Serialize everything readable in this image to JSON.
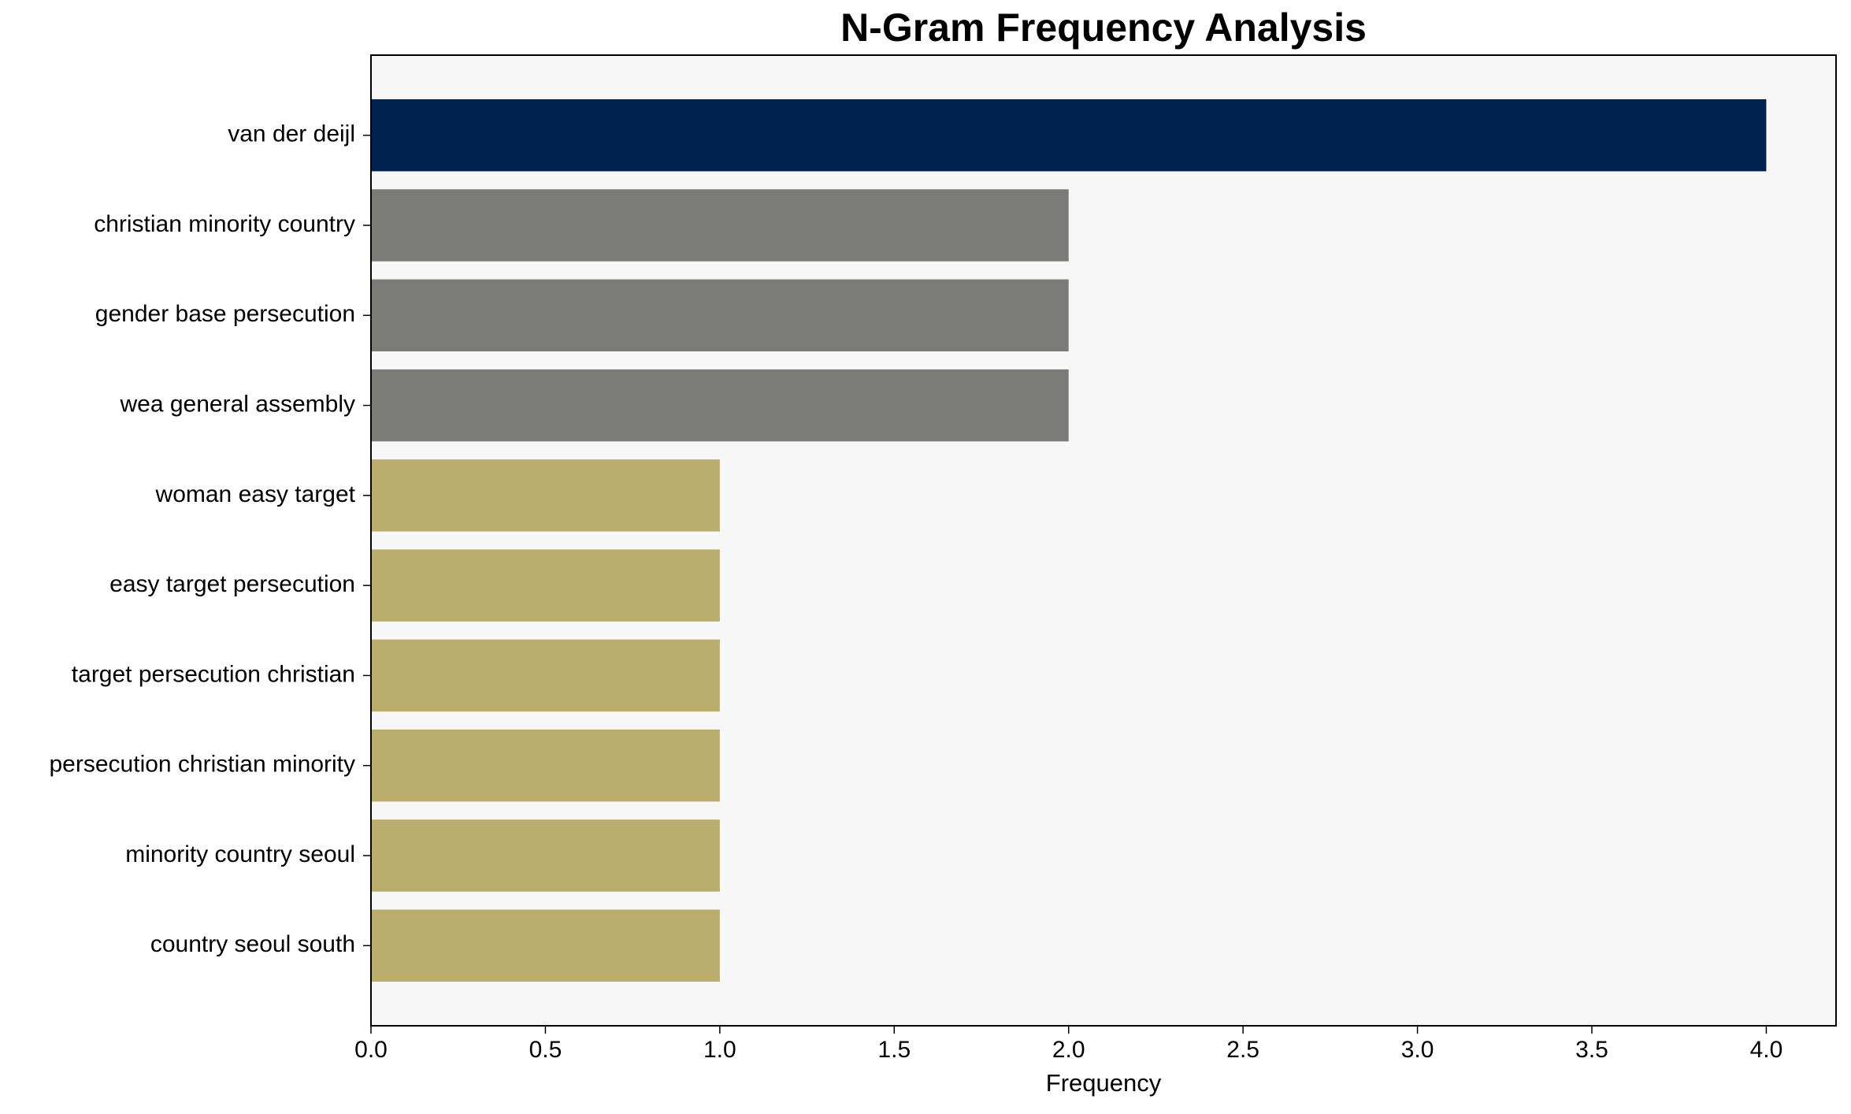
{
  "chart_data": {
    "type": "barh",
    "title": "N-Gram Frequency Analysis",
    "xlabel": "Frequency",
    "categories": [
      "van der deijl",
      "christian minority country",
      "gender base persecution",
      "wea general assembly",
      "woman easy target",
      "easy target persecution",
      "target persecution christian",
      "persecution christian minority",
      "minority country seoul",
      "country seoul south"
    ],
    "values": [
      4,
      2,
      2,
      2,
      1,
      1,
      1,
      1,
      1,
      1
    ],
    "colors": [
      "#00224e",
      "#7b7b77",
      "#7b7b77",
      "#7b7b77",
      "#bbad6e",
      "#bbad6e",
      "#bbad6e",
      "#bbad6e",
      "#bbad6e",
      "#bbad6e"
    ],
    "xlim": [
      0,
      4.2
    ],
    "xticks": [
      {
        "value": 0,
        "label": "0.0"
      },
      {
        "value": 0.5,
        "label": "0.5"
      },
      {
        "value": 1,
        "label": "1.0"
      },
      {
        "value": 1.5,
        "label": "1.5"
      },
      {
        "value": 2,
        "label": "2.0"
      },
      {
        "value": 2.5,
        "label": "2.5"
      },
      {
        "value": 3,
        "label": "3.0"
      },
      {
        "value": 3.5,
        "label": "3.5"
      },
      {
        "value": 4,
        "label": "4.0"
      }
    ],
    "grid": false
  }
}
